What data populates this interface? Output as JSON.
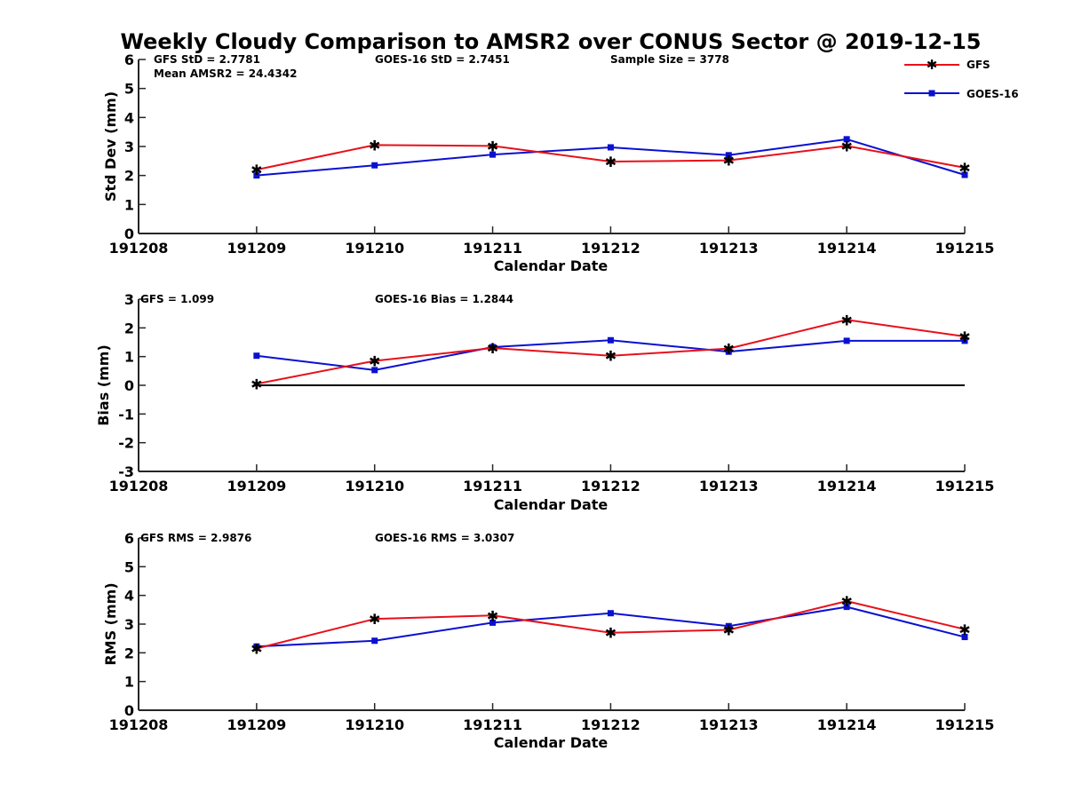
{
  "title": "Weekly Cloudy Comparison to AMSR2 over CONUS Sector @ 2019-12-15",
  "colors": {
    "gfs": "#e8101a",
    "goes": "#0a10d0",
    "axis": "#262626"
  },
  "legend": {
    "placement": "top-right",
    "items": [
      "GFS",
      "GOES-16"
    ]
  },
  "chart_data": [
    {
      "type": "line",
      "xlabel": "Calendar Date",
      "ylabel": "Std Dev (mm)",
      "categories": [
        "191208",
        "191209",
        "191210",
        "191211",
        "191212",
        "191213",
        "191214",
        "191215"
      ],
      "ylim": [
        0,
        6
      ],
      "yticks": [
        "0",
        "1",
        "2",
        "3",
        "4",
        "5",
        "6"
      ],
      "series": [
        {
          "name": "GFS",
          "x": [
            "191209",
            "191210",
            "191211",
            "191212",
            "191213",
            "191214",
            "191215"
          ],
          "values": [
            2.2,
            3.05,
            3.02,
            2.48,
            2.52,
            3.02,
            2.27
          ]
        },
        {
          "name": "GOES-16",
          "x": [
            "191209",
            "191210",
            "191211",
            "191212",
            "191213",
            "191214",
            "191215"
          ],
          "values": [
            2.0,
            2.35,
            2.72,
            2.97,
            2.7,
            3.25,
            2.02
          ]
        }
      ],
      "annotations": [
        "GFS StD = 2.7781",
        "GOES-16 StD = 2.7451",
        "Sample Size = 3778",
        "Mean AMSR2 = 24.4342"
      ]
    },
    {
      "type": "line",
      "xlabel": "Calendar Date",
      "ylabel": "Bias (mm)",
      "categories": [
        "191208",
        "191209",
        "191210",
        "191211",
        "191212",
        "191213",
        "191214",
        "191215"
      ],
      "ylim": [
        -3,
        3
      ],
      "yticks": [
        "-3",
        "-2",
        "-1",
        "0",
        "1",
        "2",
        "3"
      ],
      "reference_line": {
        "y": 0,
        "from": "191209",
        "to": "191215"
      },
      "series": [
        {
          "name": "GFS",
          "x": [
            "191209",
            "191210",
            "191211",
            "191212",
            "191213",
            "191214",
            "191215"
          ],
          "values": [
            0.05,
            0.85,
            1.3,
            1.03,
            1.28,
            2.28,
            1.7
          ]
        },
        {
          "name": "GOES-16",
          "x": [
            "191209",
            "191210",
            "191211",
            "191212",
            "191213",
            "191214",
            "191215"
          ],
          "values": [
            1.03,
            0.53,
            1.33,
            1.57,
            1.17,
            1.55,
            1.55
          ]
        }
      ],
      "annotations": [
        "GFS = 1.099",
        "GOES-16 Bias  = 1.2844"
      ]
    },
    {
      "type": "line",
      "xlabel": "Calendar Date",
      "ylabel": "RMS (mm)",
      "categories": [
        "191208",
        "191209",
        "191210",
        "191211",
        "191212",
        "191213",
        "191214",
        "191215"
      ],
      "ylim": [
        0,
        6
      ],
      "yticks": [
        "0",
        "1",
        "2",
        "3",
        "4",
        "5",
        "6"
      ],
      "series": [
        {
          "name": "GFS",
          "x": [
            "191209",
            "191210",
            "191211",
            "191212",
            "191213",
            "191214",
            "191215"
          ],
          "values": [
            2.15,
            3.18,
            3.3,
            2.7,
            2.8,
            3.8,
            2.82
          ]
        },
        {
          "name": "GOES-16",
          "x": [
            "191209",
            "191210",
            "191211",
            "191212",
            "191213",
            "191214",
            "191215"
          ],
          "values": [
            2.22,
            2.42,
            3.05,
            3.38,
            2.93,
            3.6,
            2.55
          ]
        }
      ],
      "annotations": [
        "GFS RMS = 2.9876",
        "GOES-16 RMS = 3.0307"
      ]
    }
  ]
}
